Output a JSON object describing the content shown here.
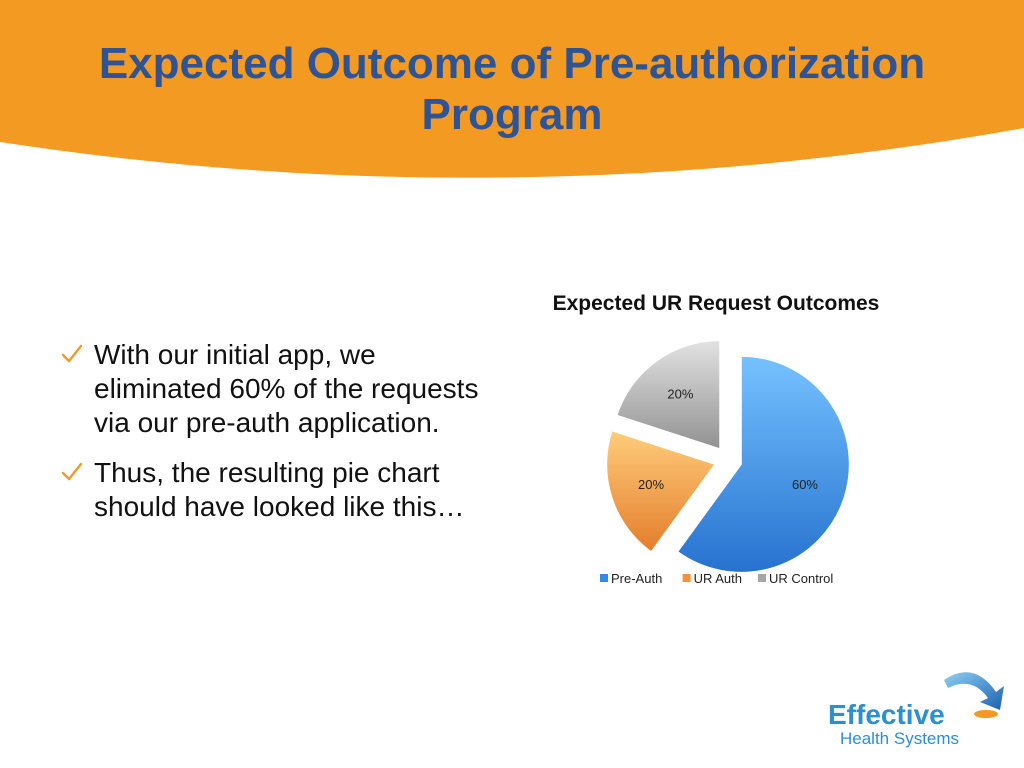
{
  "slide": {
    "title_line1": "Expected Outcome of  Pre-authorization",
    "title_line2": "Program",
    "bullets": [
      "With our initial app, we eliminated 60% of the requests via our pre-auth application.",
      "Thus, the resulting pie chart should have looked like this…"
    ],
    "accent_color": "#f39a23",
    "title_color": "#2f5496"
  },
  "chart_data": {
    "type": "pie",
    "title": "Expected UR Request Outcomes",
    "categories": [
      "Pre-Auth",
      "UR Auth",
      "UR Control"
    ],
    "values": [
      60,
      20,
      20
    ],
    "labels": [
      "60%",
      "20%",
      "20%"
    ],
    "colors": [
      "#3a86e3",
      "#f7913f",
      "#a6a6a6"
    ],
    "exploded": true,
    "legend_position": "bottom"
  },
  "logo": {
    "line1": "Effective",
    "line2": "Health Systems"
  }
}
